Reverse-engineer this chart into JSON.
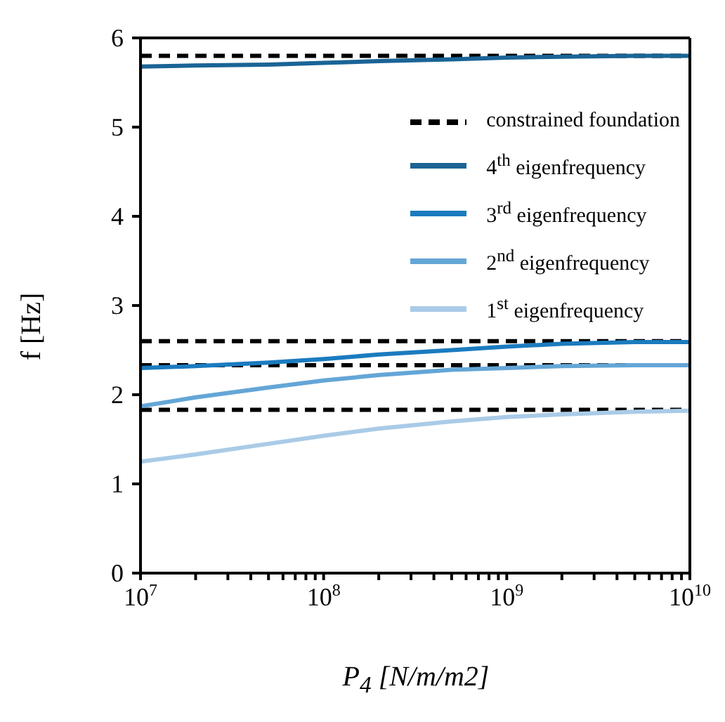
{
  "chart_data": {
    "type": "line",
    "xlabel": "P$_{4}$ [N/m/m2]",
    "ylabel": "f [Hz]",
    "log": "x",
    "grid": false,
    "legend": "top right",
    "xlim": [
      10000000,
      10000000000
    ],
    "ylim": [
      0,
      6
    ],
    "yticks": [
      0,
      1,
      2,
      3,
      4,
      5,
      6
    ],
    "xticks": [
      {
        "value": 10000000,
        "label": "10$^{7}$"
      },
      {
        "value": 20000000,
        "label": null
      },
      {
        "value": 30000000,
        "label": null
      },
      {
        "value": 40000000,
        "label": null
      },
      {
        "value": 50000000,
        "label": null
      },
      {
        "value": 60000000,
        "label": null
      },
      {
        "value": 70000000,
        "label": null
      },
      {
        "value": 80000000,
        "label": null
      },
      {
        "value": 90000000,
        "label": null
      },
      {
        "value": 100000000,
        "label": "10$^{8}$"
      },
      {
        "value": 200000000,
        "label": null
      },
      {
        "value": 300000000,
        "label": null
      },
      {
        "value": 400000000,
        "label": null
      },
      {
        "value": 500000000,
        "label": null
      },
      {
        "value": 600000000,
        "label": null
      },
      {
        "value": 700000000,
        "label": null
      },
      {
        "value": 800000000,
        "label": null
      },
      {
        "value": 900000000,
        "label": null
      },
      {
        "value": 1000000000,
        "label": "10$^{9}$"
      },
      {
        "value": 2000000000,
        "label": null
      },
      {
        "value": 3000000000,
        "label": null
      },
      {
        "value": 4000000000,
        "label": null
      },
      {
        "value": 5000000000,
        "label": null
      },
      {
        "value": 6000000000,
        "label": null
      },
      {
        "value": 7000000000,
        "label": null
      },
      {
        "value": 8000000000,
        "label": null
      },
      {
        "value": 9000000000,
        "label": null
      },
      {
        "value": 10000000000,
        "label": "10$^{10}$"
      }
    ],
    "x": [
      10000000,
      20000000,
      50000000,
      100000000,
      200000000,
      500000000,
      1000000000,
      2000000000,
      5000000000,
      10000000000
    ],
    "series": [
      {
        "name": "constrained foundation",
        "color": "#000000",
        "line_style": "dashed",
        "values": [
          5.8,
          5.8,
          5.8,
          5.8,
          5.8,
          5.8,
          5.8,
          5.8,
          5.8,
          5.8
        ]
      },
      {
        "color": "#000000",
        "line_style": "dashed",
        "values": [
          2.6,
          2.6,
          2.6,
          2.6,
          2.6,
          2.6,
          2.6,
          2.6,
          2.6,
          2.6
        ]
      },
      {
        "color": "#000000",
        "line_style": "dashed",
        "values": [
          2.33,
          2.33,
          2.33,
          2.33,
          2.33,
          2.33,
          2.33,
          2.33,
          2.33,
          2.33
        ]
      },
      {
        "color": "#000000",
        "line_style": "dashed",
        "values": [
          1.83,
          1.83,
          1.83,
          1.83,
          1.83,
          1.83,
          1.83,
          1.83,
          1.83,
          1.83
        ]
      },
      {
        "name": "4$^{th}$ eigenfrequency",
        "color": "#1a6496",
        "values": [
          5.68,
          5.69,
          5.7,
          5.72,
          5.74,
          5.76,
          5.78,
          5.79,
          5.8,
          5.8
        ]
      },
      {
        "name": "3$^{rd}$ eigenfrequency",
        "color": "#1b7bbf",
        "values": [
          2.3,
          2.32,
          2.36,
          2.4,
          2.45,
          2.5,
          2.54,
          2.57,
          2.59,
          2.59
        ]
      },
      {
        "name": "2$^{nd}$ eigenfrequency",
        "color": "#64a6d6",
        "values": [
          1.87,
          1.97,
          2.08,
          2.16,
          2.22,
          2.28,
          2.3,
          2.32,
          2.33,
          2.33
        ]
      },
      {
        "name": "1$^{st}$ eigenfrequency",
        "color": "#a9cbe7",
        "values": [
          1.25,
          1.33,
          1.45,
          1.54,
          1.62,
          1.7,
          1.75,
          1.78,
          1.81,
          1.82
        ]
      }
    ]
  }
}
